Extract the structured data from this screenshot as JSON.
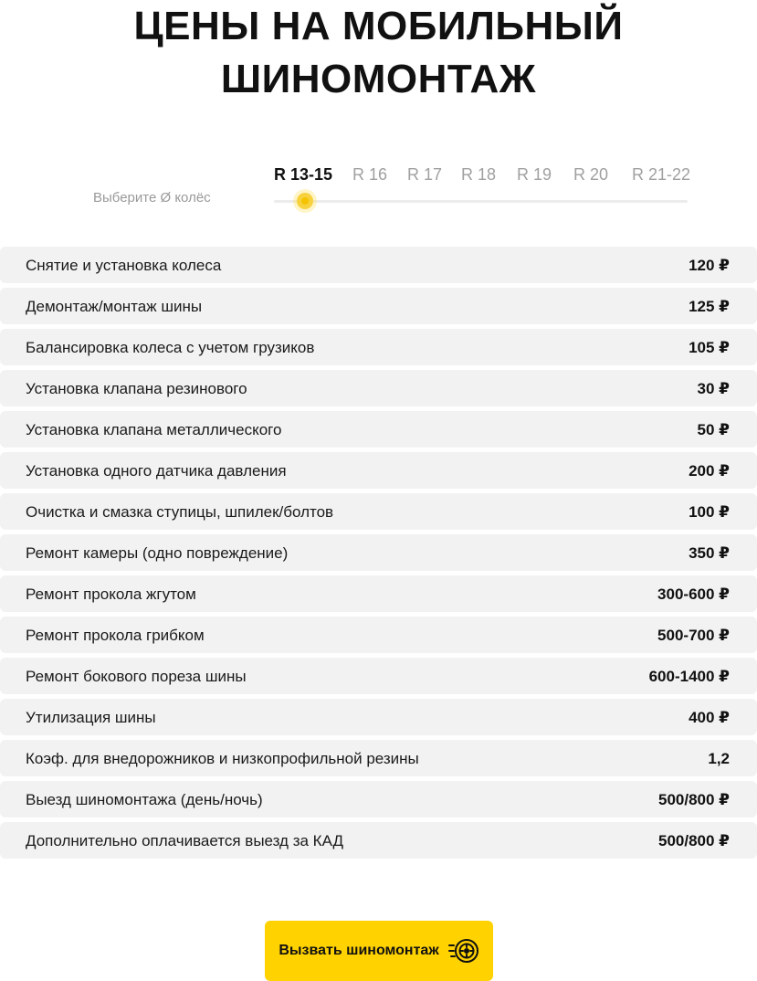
{
  "header": {
    "title_line1": "ЦЕНЫ НА МОБИЛЬНЫЙ",
    "title_line2": "ШИНОМОНТАЖ"
  },
  "selector": {
    "label": "Выберите Ø колёс",
    "active_index": 0,
    "tabs": [
      "R 13-15",
      "R 16",
      "R 17",
      "R 18",
      "R 19",
      "R 20",
      "R 21-22"
    ]
  },
  "prices": [
    {
      "name": "Снятие и установка колеса",
      "price": "120 ₽"
    },
    {
      "name": "Демонтаж/монтаж шины",
      "price": "125 ₽"
    },
    {
      "name": "Балансировка колеса с учетом грузиков",
      "price": "105 ₽"
    },
    {
      "name": "Установка клапана резинового",
      "price": "30 ₽"
    },
    {
      "name": "Установка клапана металлического",
      "price": "50 ₽"
    },
    {
      "name": "Установка одного датчика давления",
      "price": "200 ₽"
    },
    {
      "name": "Очистка и смазка ступицы, шпилек/болтов",
      "price": "100 ₽"
    },
    {
      "name": "Ремонт камеры (одно повреждение)",
      "price": "350 ₽"
    },
    {
      "name": "Ремонт прокола жгутом",
      "price": "300-600 ₽"
    },
    {
      "name": "Ремонт прокола грибком",
      "price": "500-700 ₽"
    },
    {
      "name": "Ремонт бокового пореза шины",
      "price": "600-1400 ₽"
    },
    {
      "name": "Утилизация шины",
      "price": "400 ₽"
    },
    {
      "name": "Коэф. для внедорожников и низкопрофильной резины",
      "price": "1,2"
    },
    {
      "name": "Выезд шиномонтажа (день/ночь)",
      "price": "500/800 ₽"
    },
    {
      "name": "Дополнительно оплачивается выезд за КАД",
      "price": "500/800 ₽"
    }
  ],
  "cta": {
    "label": "Вызвать шиномонтаж",
    "icon": "speeding-wheel-icon"
  },
  "colors": {
    "accent": "#ffd200",
    "row_bg": "#f2f2f2",
    "inactive_tab": "#a0a0a0"
  }
}
